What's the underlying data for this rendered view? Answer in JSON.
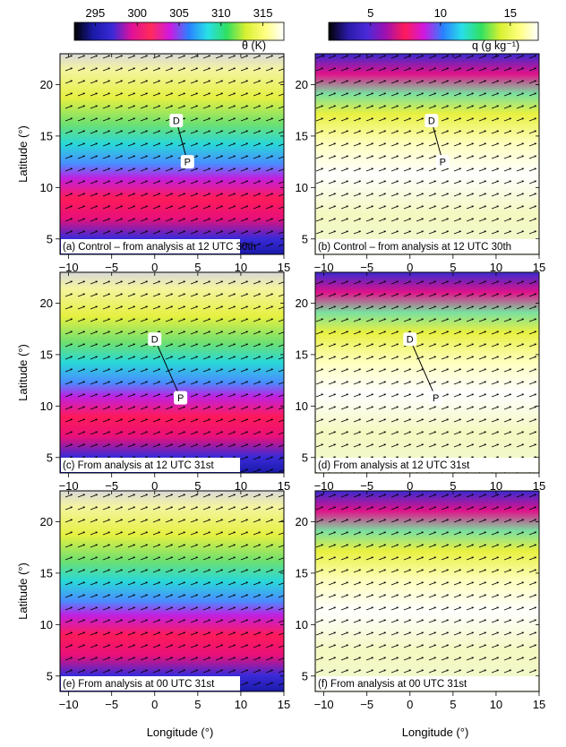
{
  "colorbars": [
    {
      "ticks": [
        "295",
        "300",
        "305",
        "310",
        "315"
      ],
      "label": "θ (K)",
      "stops": [
        "#000000",
        "#1a1aa8",
        "#3a2ad8",
        "#e0109a",
        "#ff2a5a",
        "#d018e0",
        "#2a80ff",
        "#28e0e8",
        "#30e060",
        "#d8f030",
        "#ffff80",
        "#ffffff"
      ]
    },
    {
      "ticks": [
        "5",
        "10",
        "15"
      ],
      "label": "q (g kg⁻¹)",
      "stops": [
        "#000000",
        "#2a1aa8",
        "#4a2ad8",
        "#a010b0",
        "#ff1a5a",
        "#d018e0",
        "#2a80ff",
        "#28e0e8",
        "#30e060",
        "#d8f030",
        "#ffff80",
        "#ffffff"
      ]
    }
  ],
  "axes": {
    "x_ticks": [
      "−10",
      "−5",
      "0",
      "5",
      "10",
      "15"
    ],
    "y_ticks": [
      "5",
      "10",
      "15",
      "20"
    ],
    "xlabel": "Longitude (°)",
    "ylabel": "Latitude (°)"
  },
  "panels": [
    {
      "caption": "(a) Control – from analysis at 12 UTC 30th",
      "points": [
        {
          "label": "D",
          "lon": 2.5,
          "lat": 16.5
        },
        {
          "label": "P",
          "lon": 3.8,
          "lat": 12.5
        }
      ]
    },
    {
      "caption": "(b) Control – from analysis at 12 UTC 30th",
      "points": [
        {
          "label": "D",
          "lon": 2.5,
          "lat": 16.5
        },
        {
          "label": "P",
          "lon": 3.8,
          "lat": 12.5
        }
      ]
    },
    {
      "caption": "(c) From analysis at 12 UTC 31st",
      "points": [
        {
          "label": "D",
          "lon": 0,
          "lat": 16.5
        },
        {
          "label": "P",
          "lon": 3,
          "lat": 10.8
        }
      ]
    },
    {
      "caption": "(d) From analysis at 12 UTC 31st",
      "points": [
        {
          "label": "D",
          "lon": 0,
          "lat": 16.5
        },
        {
          "label": "P",
          "lon": 3,
          "lat": 10.8
        }
      ]
    },
    {
      "caption": "(e) From analysis at 00 UTC 31st",
      "points": []
    },
    {
      "caption": "(f) From analysis at 00 UTC 31st",
      "points": []
    }
  ]
}
